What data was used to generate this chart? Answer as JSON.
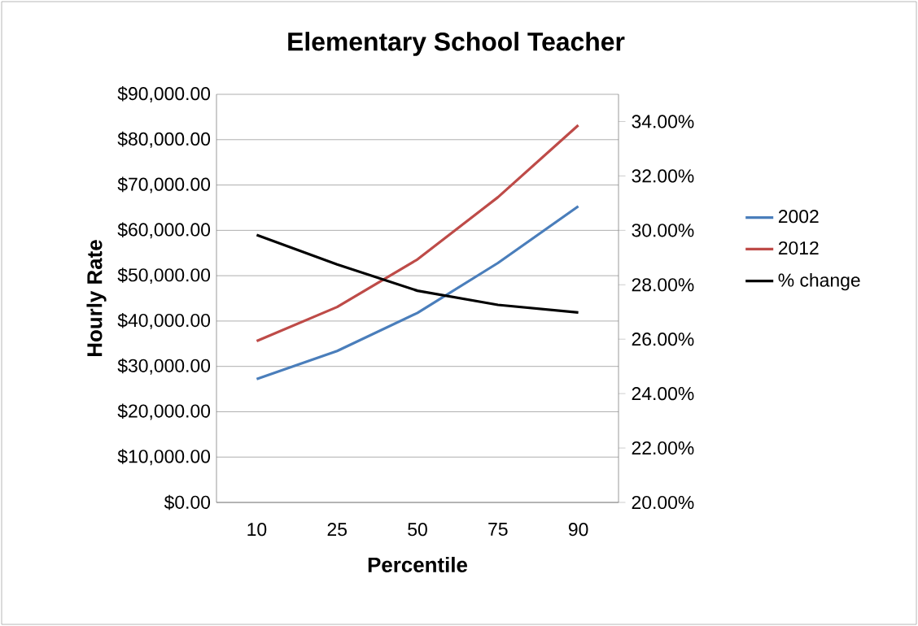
{
  "chart_data": {
    "type": "line",
    "title": "Elementary School Teacher",
    "xlabel": "Percentile",
    "ylabel": "Hourly Rate",
    "categories": [
      "10",
      "25",
      "50",
      "75",
      "90"
    ],
    "series": [
      {
        "name": "2002",
        "color": "#4a7ebb",
        "values": [
          27200,
          33400,
          41800,
          52800,
          65300
        ]
      },
      {
        "name": "2012",
        "color": "#be4b48",
        "values": [
          35600,
          43100,
          53600,
          67300,
          83200
        ]
      },
      {
        "name": "% change",
        "color": "#000000",
        "axis": "y2",
        "values": [
          29.83,
          28.75,
          27.78,
          27.26,
          26.98
        ]
      }
    ],
    "ylim": [
      0,
      90000
    ],
    "yticks": [
      {
        "value": 0,
        "label": "$0.00"
      },
      {
        "value": 10000,
        "label": "$10,000.00"
      },
      {
        "value": 20000,
        "label": "$20,000.00"
      },
      {
        "value": 30000,
        "label": "$30,000.00"
      },
      {
        "value": 40000,
        "label": "$40,000.00"
      },
      {
        "value": 50000,
        "label": "$50,000.00"
      },
      {
        "value": 60000,
        "label": "$60,000.00"
      },
      {
        "value": 70000,
        "label": "$70,000.00"
      },
      {
        "value": 80000,
        "label": "$80,000.00"
      },
      {
        "value": 90000,
        "label": "$90,000.00"
      }
    ],
    "y2lim": [
      20,
      35
    ],
    "y2ticks": [
      {
        "value": 20,
        "label": "20.00%"
      },
      {
        "value": 22,
        "label": "22.00%"
      },
      {
        "value": 24,
        "label": "24.00%"
      },
      {
        "value": 26,
        "label": "26.00%"
      },
      {
        "value": 28,
        "label": "28.00%"
      },
      {
        "value": 30,
        "label": "30.00%"
      },
      {
        "value": 32,
        "label": "32.00%"
      },
      {
        "value": 34,
        "label": "34.00%"
      }
    ],
    "grid": "y",
    "legend": "right",
    "marker": "none",
    "line_style": "solid"
  }
}
